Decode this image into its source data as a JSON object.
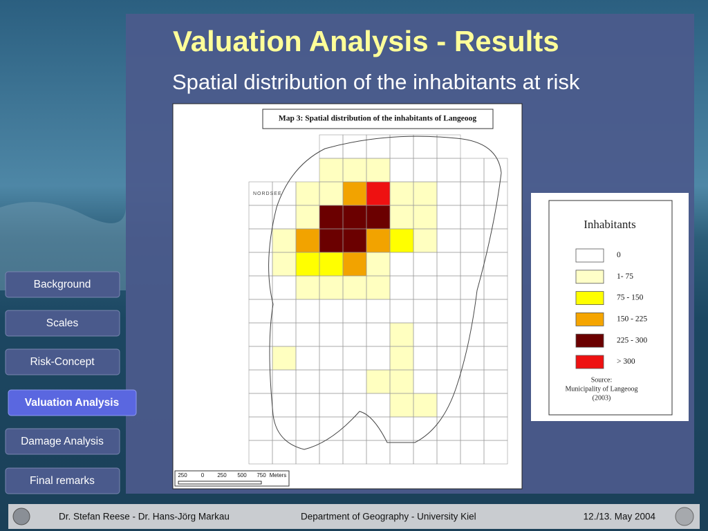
{
  "slide": {
    "title": "Valuation Analysis - Results",
    "subtitle": "Spatial distribution of the inhabitants at risk",
    "nav": [
      "Background",
      "Scales",
      "Risk-Concept",
      "Valuation Analysis",
      "Damage Analysis",
      "Final remarks"
    ],
    "map": {
      "title": "Map 3: Spatial distribution of the inhabitants of Langeoog",
      "sea_label": "NORDSEE",
      "scale": [
        "250",
        "0",
        "250",
        "500",
        "750",
        "Meters"
      ]
    },
    "legend": {
      "title": "Inhabitants",
      "items": [
        "0",
        "1- 75",
        "75 - 150",
        "150 - 225",
        "225 - 300",
        "> 300"
      ],
      "source": [
        "Source:",
        "Municipality of Langeoog",
        "(2003)"
      ]
    },
    "footer": {
      "authors": "Dr. Stefan Reese - Dr. Hans-Jörg Markau",
      "department": "Department of Geography - University Kiel",
      "date": "12./13. May 2004"
    }
  }
}
